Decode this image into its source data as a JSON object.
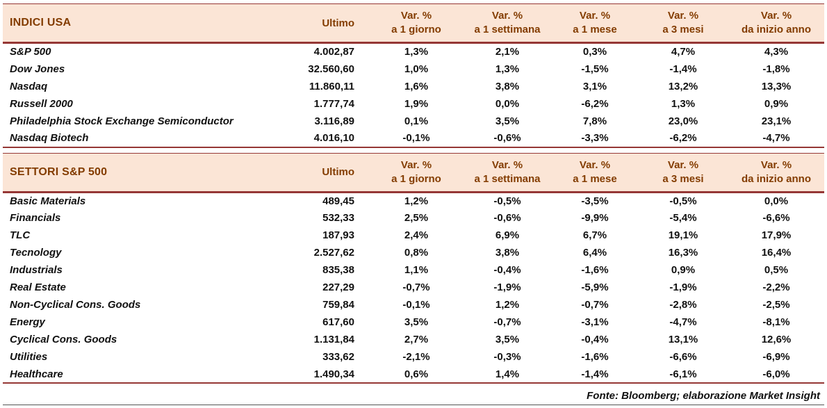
{
  "colors": {
    "header_bg": "#fbe5d6",
    "header_text": "#833c00",
    "rule": "#953735"
  },
  "footer": "Fonte: Bloomberg; elaborazione Market Insight",
  "chart_data": [
    {
      "type": "table",
      "title": "INDICI USA",
      "ultimo_label": "Ultimo",
      "var_headers": [
        {
          "line1": "Var. %",
          "line2": "a 1 giorno"
        },
        {
          "line1": "Var. %",
          "line2": "a 1 settimana"
        },
        {
          "line1": "Var. %",
          "line2": "a 1 mese"
        },
        {
          "line1": "Var. %",
          "line2": "a 3 mesi"
        },
        {
          "line1": "Var. %",
          "line2": "da inizio anno"
        }
      ],
      "rows": [
        {
          "name": "S&P 500",
          "ultimo": "4.002,87",
          "vars": [
            "1,3%",
            "2,1%",
            "0,3%",
            "4,7%",
            "4,3%"
          ]
        },
        {
          "name": "Dow Jones",
          "ultimo": "32.560,60",
          "vars": [
            "1,0%",
            "1,3%",
            "-1,5%",
            "-1,4%",
            "-1,8%"
          ]
        },
        {
          "name": "Nasdaq",
          "ultimo": "11.860,11",
          "vars": [
            "1,6%",
            "3,8%",
            "3,1%",
            "13,2%",
            "13,3%"
          ]
        },
        {
          "name": "Russell 2000",
          "ultimo": "1.777,74",
          "vars": [
            "1,9%",
            "0,0%",
            "-6,2%",
            "1,3%",
            "0,9%"
          ]
        },
        {
          "name": "Philadelphia Stock Exchange Semiconductor",
          "ultimo": "3.116,89",
          "vars": [
            "0,1%",
            "3,5%",
            "7,8%",
            "23,0%",
            "23,1%"
          ]
        },
        {
          "name": "Nasdaq Biotech",
          "ultimo": "4.016,10",
          "vars": [
            "-0,1%",
            "-0,6%",
            "-3,3%",
            "-6,2%",
            "-4,7%"
          ]
        }
      ]
    },
    {
      "type": "table",
      "title": "SETTORI S&P 500",
      "ultimo_label": "Ultimo",
      "var_headers": [
        {
          "line1": "Var. %",
          "line2": "a 1 giorno"
        },
        {
          "line1": "Var. %",
          "line2": "a 1 settimana"
        },
        {
          "line1": "Var. %",
          "line2": "a 1 mese"
        },
        {
          "line1": "Var. %",
          "line2": "a 3 mesi"
        },
        {
          "line1": "Var. %",
          "line2": "da inizio anno"
        }
      ],
      "rows": [
        {
          "name": "Basic Materials",
          "ultimo": "489,45",
          "vars": [
            "1,2%",
            "-0,5%",
            "-3,5%",
            "-0,5%",
            "0,0%"
          ]
        },
        {
          "name": "Financials",
          "ultimo": "532,33",
          "vars": [
            "2,5%",
            "-0,6%",
            "-9,9%",
            "-5,4%",
            "-6,6%"
          ]
        },
        {
          "name": "TLC",
          "ultimo": "187,93",
          "vars": [
            "2,4%",
            "6,9%",
            "6,7%",
            "19,1%",
            "17,9%"
          ]
        },
        {
          "name": "Tecnology",
          "ultimo": "2.527,62",
          "vars": [
            "0,8%",
            "3,8%",
            "6,4%",
            "16,3%",
            "16,4%"
          ]
        },
        {
          "name": "Industrials",
          "ultimo": "835,38",
          "vars": [
            "1,1%",
            "-0,4%",
            "-1,6%",
            "0,9%",
            "0,5%"
          ]
        },
        {
          "name": "Real Estate",
          "ultimo": "227,29",
          "vars": [
            "-0,7%",
            "-1,9%",
            "-5,9%",
            "-1,9%",
            "-2,2%"
          ]
        },
        {
          "name": "Non-Cyclical Cons. Goods",
          "ultimo": "759,84",
          "vars": [
            "-0,1%",
            "1,2%",
            "-0,7%",
            "-2,8%",
            "-2,5%"
          ]
        },
        {
          "name": "Energy",
          "ultimo": "617,60",
          "vars": [
            "3,5%",
            "-0,7%",
            "-3,1%",
            "-4,7%",
            "-8,1%"
          ]
        },
        {
          "name": "Cyclical Cons. Goods",
          "ultimo": "1.131,84",
          "vars": [
            "2,7%",
            "3,5%",
            "-0,4%",
            "13,1%",
            "12,6%"
          ]
        },
        {
          "name": "Utilities",
          "ultimo": "333,62",
          "vars": [
            "-2,1%",
            "-0,3%",
            "-1,6%",
            "-6,6%",
            "-6,9%"
          ]
        },
        {
          "name": "Healthcare",
          "ultimo": "1.490,34",
          "vars": [
            "0,6%",
            "1,4%",
            "-1,4%",
            "-6,1%",
            "-6,0%"
          ]
        }
      ]
    }
  ]
}
